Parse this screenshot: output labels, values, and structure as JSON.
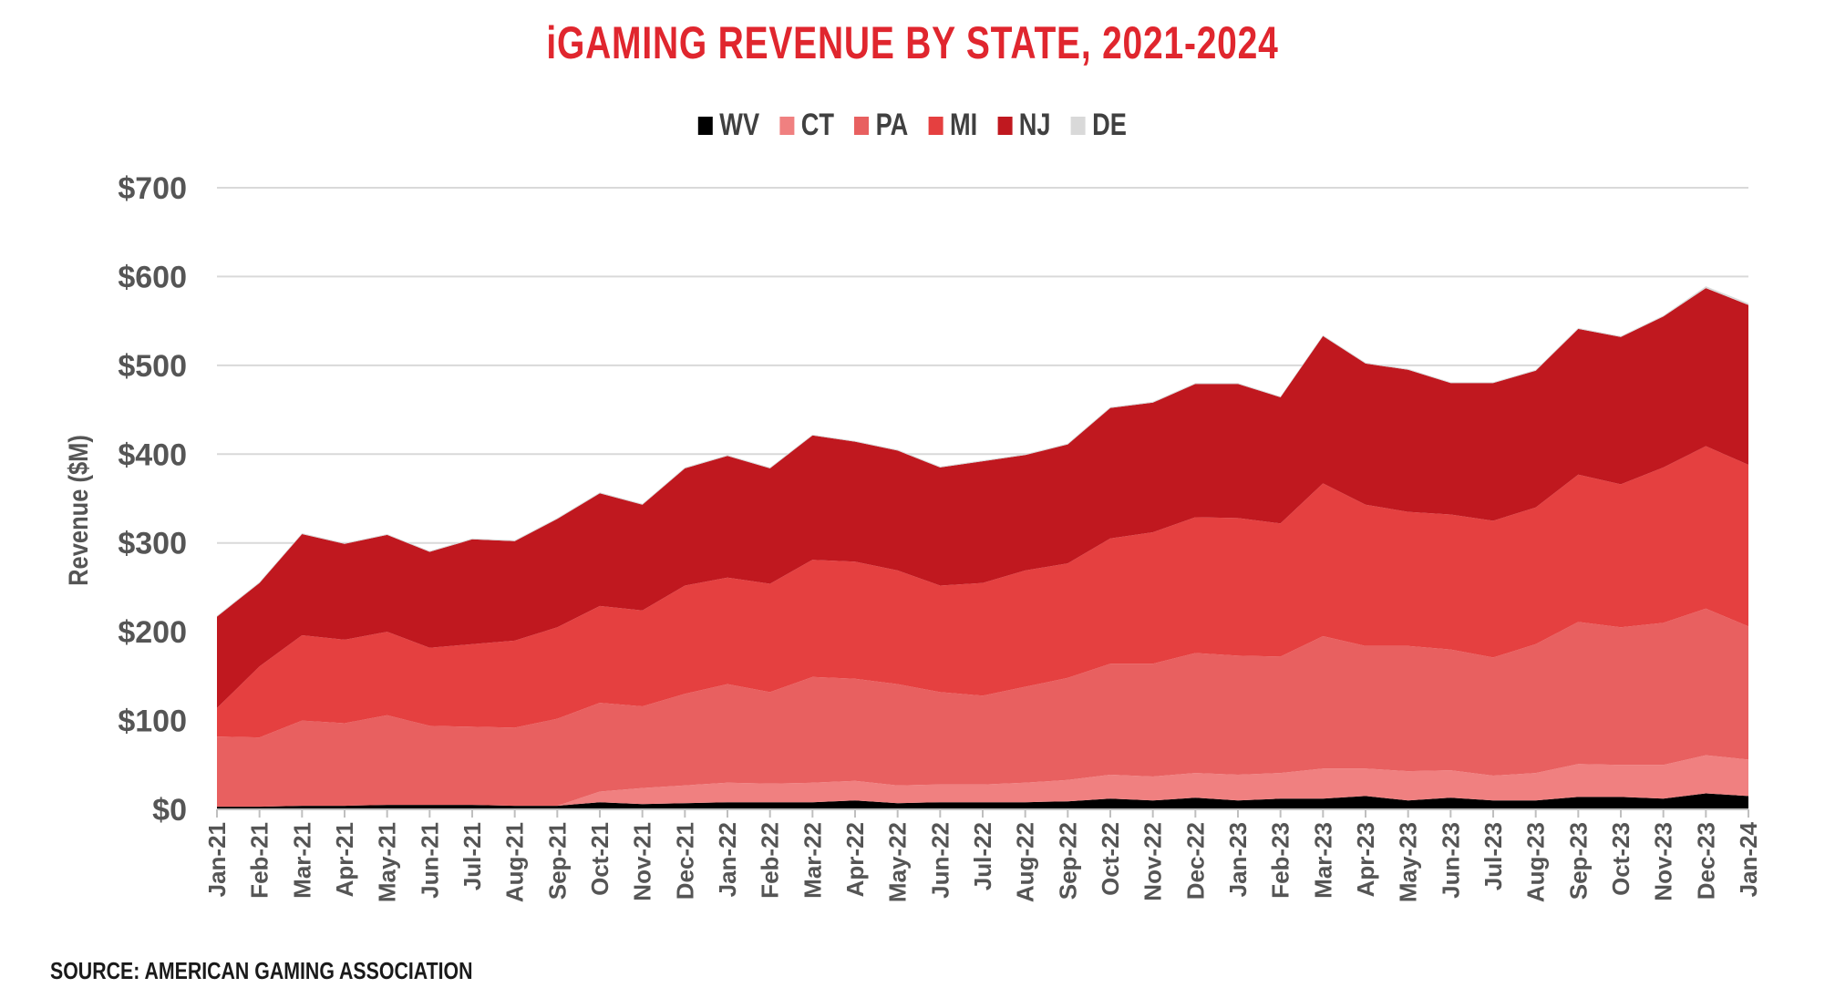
{
  "chart_data": {
    "type": "area",
    "stacked": true,
    "title": "iGAMING REVENUE BY STATE, 2021-2024",
    "ylabel": "Revenue ($M)",
    "xlabel": "",
    "ylim": [
      0,
      700
    ],
    "yticks": [
      "$0",
      "$100",
      "$200",
      "$300",
      "$400",
      "$500",
      "$600",
      "$700"
    ],
    "ytick_values": [
      0,
      100,
      200,
      300,
      400,
      500,
      600,
      700
    ],
    "grid": true,
    "legend_position": "top-center",
    "categories": [
      "Jan-21",
      "Feb-21",
      "Mar-21",
      "Apr-21",
      "May-21",
      "Jun-21",
      "Jul-21",
      "Aug-21",
      "Sep-21",
      "Oct-21",
      "Nov-21",
      "Dec-21",
      "Jan-22",
      "Feb-22",
      "Mar-22",
      "Apr-22",
      "May-22",
      "Jun-22",
      "Jul-22",
      "Aug-22",
      "Sep-22",
      "Oct-22",
      "Nov-22",
      "Dec-22",
      "Jan-23",
      "Feb-23",
      "Mar-23",
      "Apr-23",
      "May-23",
      "Jun-23",
      "Jul-23",
      "Aug-23",
      "Sep-23",
      "Oct-23",
      "Nov-23",
      "Dec-23",
      "Jan-24"
    ],
    "series": [
      {
        "name": "WV",
        "color": "#000000",
        "values": [
          3,
          3,
          4,
          4,
          5,
          5,
          5,
          4,
          4,
          8,
          6,
          7,
          8,
          8,
          8,
          10,
          7,
          8,
          8,
          8,
          9,
          12,
          10,
          13,
          10,
          12,
          12,
          15,
          10,
          13,
          10,
          10,
          14,
          14,
          12,
          18,
          15
        ]
      },
      {
        "name": "CT",
        "color": "#f08080",
        "values": [
          0,
          0,
          0,
          0,
          0,
          0,
          0,
          0,
          0,
          12,
          18,
          20,
          22,
          21,
          22,
          22,
          20,
          20,
          20,
          22,
          24,
          27,
          27,
          28,
          29,
          29,
          34,
          31,
          33,
          31,
          28,
          31,
          37,
          36,
          38,
          43,
          41
        ]
      },
      {
        "name": "PA",
        "color": "#e86060",
        "values": [
          79,
          78,
          96,
          93,
          101,
          89,
          88,
          88,
          98,
          100,
          92,
          103,
          111,
          103,
          119,
          115,
          114,
          104,
          100,
          108,
          115,
          125,
          127,
          135,
          134,
          131,
          149,
          138,
          141,
          136,
          133,
          145,
          160,
          155,
          160,
          165,
          150
        ]
      },
      {
        "name": "MI",
        "color": "#e54040",
        "values": [
          32,
          80,
          96,
          94,
          94,
          88,
          93,
          98,
          103,
          109,
          108,
          122,
          120,
          122,
          132,
          132,
          128,
          120,
          127,
          131,
          129,
          141,
          148,
          153,
          155,
          150,
          172,
          159,
          151,
          152,
          154,
          154,
          166,
          161,
          175,
          183,
          182
        ]
      },
      {
        "name": "NJ",
        "color": "#c0181f",
        "values": [
          103,
          94,
          114,
          108,
          109,
          108,
          118,
          112,
          122,
          127,
          119,
          132,
          137,
          130,
          140,
          135,
          135,
          133,
          137,
          130,
          134,
          147,
          146,
          150,
          151,
          142,
          166,
          159,
          160,
          148,
          155,
          154,
          164,
          166,
          170,
          178,
          180
        ]
      },
      {
        "name": "DE",
        "color": "#d9d9d9",
        "values": [
          1,
          1,
          1,
          1,
          1,
          1,
          1,
          1,
          1,
          1,
          1,
          1,
          1,
          1,
          1,
          1,
          1,
          1,
          1,
          1,
          1,
          1,
          1,
          1,
          1,
          1,
          1,
          1,
          1,
          1,
          1,
          1,
          1,
          1,
          1,
          2,
          2
        ]
      }
    ]
  },
  "colors": {
    "title": "#e0262e",
    "grid": "#d9d9d9",
    "axis": "#bfbfbf",
    "text": "#555555"
  },
  "source_note": "SOURCE: AMERICAN GAMING ASSOCIATION"
}
